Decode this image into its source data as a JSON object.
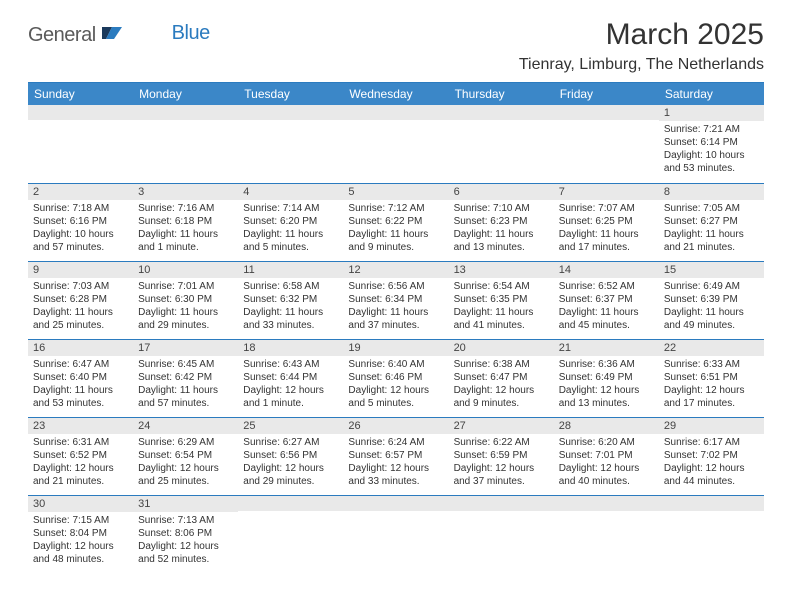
{
  "logo": {
    "main": "General",
    "sub": "Blue"
  },
  "colors": {
    "header_bg": "#3b87c8",
    "header_text": "#ffffff",
    "border": "#2b7bbf",
    "daynum_bg": "#e9e9e9",
    "text": "#333333",
    "logo_grey": "#5a5a5a",
    "logo_blue": "#2b7bbf"
  },
  "title": "March 2025",
  "location": "Tienray, Limburg, The Netherlands",
  "weekdays": [
    "Sunday",
    "Monday",
    "Tuesday",
    "Wednesday",
    "Thursday",
    "Friday",
    "Saturday"
  ],
  "weeks": [
    [
      {
        "n": "",
        "lines": []
      },
      {
        "n": "",
        "lines": []
      },
      {
        "n": "",
        "lines": []
      },
      {
        "n": "",
        "lines": []
      },
      {
        "n": "",
        "lines": []
      },
      {
        "n": "",
        "lines": []
      },
      {
        "n": "1",
        "lines": [
          "Sunrise: 7:21 AM",
          "Sunset: 6:14 PM",
          "Daylight: 10 hours and 53 minutes."
        ]
      }
    ],
    [
      {
        "n": "2",
        "lines": [
          "Sunrise: 7:18 AM",
          "Sunset: 6:16 PM",
          "Daylight: 10 hours and 57 minutes."
        ]
      },
      {
        "n": "3",
        "lines": [
          "Sunrise: 7:16 AM",
          "Sunset: 6:18 PM",
          "Daylight: 11 hours and 1 minute."
        ]
      },
      {
        "n": "4",
        "lines": [
          "Sunrise: 7:14 AM",
          "Sunset: 6:20 PM",
          "Daylight: 11 hours and 5 minutes."
        ]
      },
      {
        "n": "5",
        "lines": [
          "Sunrise: 7:12 AM",
          "Sunset: 6:22 PM",
          "Daylight: 11 hours and 9 minutes."
        ]
      },
      {
        "n": "6",
        "lines": [
          "Sunrise: 7:10 AM",
          "Sunset: 6:23 PM",
          "Daylight: 11 hours and 13 minutes."
        ]
      },
      {
        "n": "7",
        "lines": [
          "Sunrise: 7:07 AM",
          "Sunset: 6:25 PM",
          "Daylight: 11 hours and 17 minutes."
        ]
      },
      {
        "n": "8",
        "lines": [
          "Sunrise: 7:05 AM",
          "Sunset: 6:27 PM",
          "Daylight: 11 hours and 21 minutes."
        ]
      }
    ],
    [
      {
        "n": "9",
        "lines": [
          "Sunrise: 7:03 AM",
          "Sunset: 6:28 PM",
          "Daylight: 11 hours and 25 minutes."
        ]
      },
      {
        "n": "10",
        "lines": [
          "Sunrise: 7:01 AM",
          "Sunset: 6:30 PM",
          "Daylight: 11 hours and 29 minutes."
        ]
      },
      {
        "n": "11",
        "lines": [
          "Sunrise: 6:58 AM",
          "Sunset: 6:32 PM",
          "Daylight: 11 hours and 33 minutes."
        ]
      },
      {
        "n": "12",
        "lines": [
          "Sunrise: 6:56 AM",
          "Sunset: 6:34 PM",
          "Daylight: 11 hours and 37 minutes."
        ]
      },
      {
        "n": "13",
        "lines": [
          "Sunrise: 6:54 AM",
          "Sunset: 6:35 PM",
          "Daylight: 11 hours and 41 minutes."
        ]
      },
      {
        "n": "14",
        "lines": [
          "Sunrise: 6:52 AM",
          "Sunset: 6:37 PM",
          "Daylight: 11 hours and 45 minutes."
        ]
      },
      {
        "n": "15",
        "lines": [
          "Sunrise: 6:49 AM",
          "Sunset: 6:39 PM",
          "Daylight: 11 hours and 49 minutes."
        ]
      }
    ],
    [
      {
        "n": "16",
        "lines": [
          "Sunrise: 6:47 AM",
          "Sunset: 6:40 PM",
          "Daylight: 11 hours and 53 minutes."
        ]
      },
      {
        "n": "17",
        "lines": [
          "Sunrise: 6:45 AM",
          "Sunset: 6:42 PM",
          "Daylight: 11 hours and 57 minutes."
        ]
      },
      {
        "n": "18",
        "lines": [
          "Sunrise: 6:43 AM",
          "Sunset: 6:44 PM",
          "Daylight: 12 hours and 1 minute."
        ]
      },
      {
        "n": "19",
        "lines": [
          "Sunrise: 6:40 AM",
          "Sunset: 6:46 PM",
          "Daylight: 12 hours and 5 minutes."
        ]
      },
      {
        "n": "20",
        "lines": [
          "Sunrise: 6:38 AM",
          "Sunset: 6:47 PM",
          "Daylight: 12 hours and 9 minutes."
        ]
      },
      {
        "n": "21",
        "lines": [
          "Sunrise: 6:36 AM",
          "Sunset: 6:49 PM",
          "Daylight: 12 hours and 13 minutes."
        ]
      },
      {
        "n": "22",
        "lines": [
          "Sunrise: 6:33 AM",
          "Sunset: 6:51 PM",
          "Daylight: 12 hours and 17 minutes."
        ]
      }
    ],
    [
      {
        "n": "23",
        "lines": [
          "Sunrise: 6:31 AM",
          "Sunset: 6:52 PM",
          "Daylight: 12 hours and 21 minutes."
        ]
      },
      {
        "n": "24",
        "lines": [
          "Sunrise: 6:29 AM",
          "Sunset: 6:54 PM",
          "Daylight: 12 hours and 25 minutes."
        ]
      },
      {
        "n": "25",
        "lines": [
          "Sunrise: 6:27 AM",
          "Sunset: 6:56 PM",
          "Daylight: 12 hours and 29 minutes."
        ]
      },
      {
        "n": "26",
        "lines": [
          "Sunrise: 6:24 AM",
          "Sunset: 6:57 PM",
          "Daylight: 12 hours and 33 minutes."
        ]
      },
      {
        "n": "27",
        "lines": [
          "Sunrise: 6:22 AM",
          "Sunset: 6:59 PM",
          "Daylight: 12 hours and 37 minutes."
        ]
      },
      {
        "n": "28",
        "lines": [
          "Sunrise: 6:20 AM",
          "Sunset: 7:01 PM",
          "Daylight: 12 hours and 40 minutes."
        ]
      },
      {
        "n": "29",
        "lines": [
          "Sunrise: 6:17 AM",
          "Sunset: 7:02 PM",
          "Daylight: 12 hours and 44 minutes."
        ]
      }
    ],
    [
      {
        "n": "30",
        "lines": [
          "Sunrise: 7:15 AM",
          "Sunset: 8:04 PM",
          "Daylight: 12 hours and 48 minutes."
        ]
      },
      {
        "n": "31",
        "lines": [
          "Sunrise: 7:13 AM",
          "Sunset: 8:06 PM",
          "Daylight: 12 hours and 52 minutes."
        ]
      },
      {
        "n": "",
        "lines": []
      },
      {
        "n": "",
        "lines": []
      },
      {
        "n": "",
        "lines": []
      },
      {
        "n": "",
        "lines": []
      },
      {
        "n": "",
        "lines": []
      }
    ]
  ]
}
